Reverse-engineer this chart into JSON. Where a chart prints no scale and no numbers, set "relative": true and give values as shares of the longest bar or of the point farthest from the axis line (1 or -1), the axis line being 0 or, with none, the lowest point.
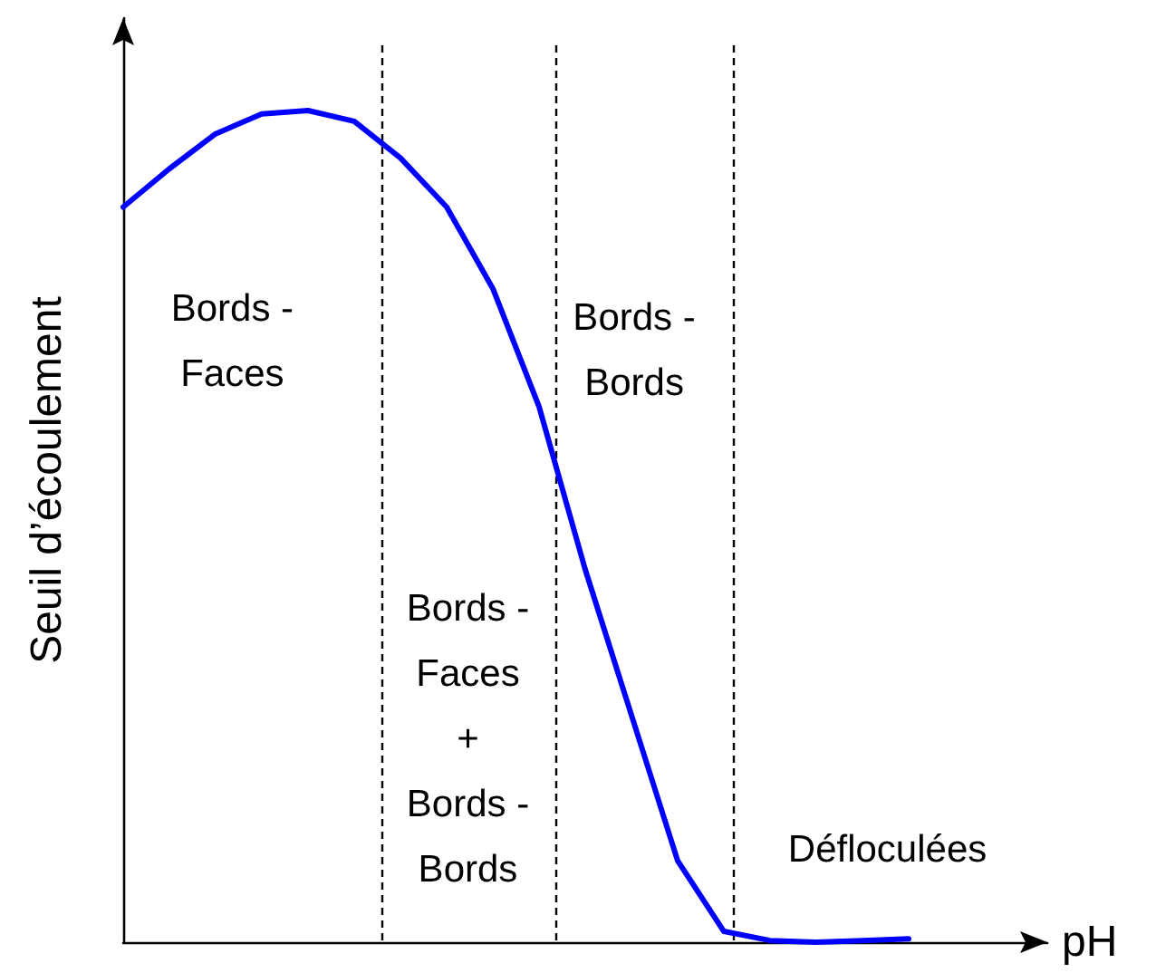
{
  "chart_data": {
    "type": "line",
    "relative": true,
    "xlabel": "pH",
    "ylabel": "Seuil d’écoulement",
    "grid": false,
    "marker": "none",
    "line_style": "solid",
    "categories": [
      null,
      null,
      null,
      null,
      null,
      null,
      null,
      null,
      null,
      null,
      null,
      null,
      null,
      null,
      null,
      null,
      null,
      null,
      null,
      null,
      null
    ],
    "series": [
      {
        "color": "#0000ff",
        "values": [
          0.884,
          0.93,
          0.972,
          0.996,
          1,
          0.987,
          0.943,
          0.884,
          0.786,
          0.644,
          0.448,
          0.273,
          0.098,
          0.013,
          0.002,
          0,
          0.002,
          0.004,
          null,
          null,
          null
        ]
      }
    ],
    "annotations": [
      "Bords -\nFaces",
      "Bords -\nBords",
      "Bords -\nFaces\n+\nBords -\nBords",
      "Défloculées"
    ]
  }
}
